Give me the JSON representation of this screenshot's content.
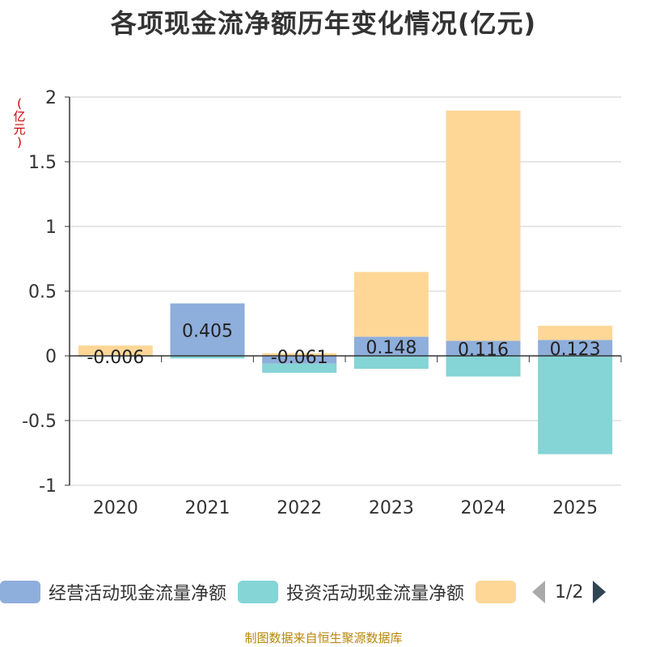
{
  "chart_data": {
    "type": "bar",
    "stacked": true,
    "title": "各项现金流净额历年变化情况(亿元)",
    "ylabel": "(亿元)",
    "categories": [
      "2020",
      "2021",
      "2022",
      "2023",
      "2024",
      "2025"
    ],
    "ylim": [
      -1,
      2
    ],
    "yticks": [
      -1,
      -0.5,
      0,
      0.5,
      1,
      1.5,
      2
    ],
    "ytick_labels": [
      "-1",
      "-0.5",
      "0",
      "0.5",
      "1",
      "1.5",
      "2"
    ],
    "grid": true,
    "series": [
      {
        "name": "经营活动现金流量净额",
        "color": "#8eaedb",
        "values": [
          -0.006,
          0.405,
          -0.061,
          0.148,
          0.116,
          0.123
        ],
        "labels": [
          "-0.006",
          "0.405",
          "-0.061",
          "0.148",
          "0.116",
          "0.123"
        ]
      },
      {
        "name": "投资活动现金流量净额",
        "color": "#85d4d6",
        "values": [
          0.0,
          -0.02,
          -0.07,
          -0.1,
          -0.16,
          -0.76
        ]
      },
      {
        "name": "",
        "color": "#fed797",
        "values": [
          0.08,
          0.0,
          0.02,
          0.5,
          1.78,
          0.11
        ]
      }
    ]
  },
  "legend": {
    "items": [
      {
        "label": "经营活动现金流量净额",
        "color": "#8eaedb"
      },
      {
        "label": "投资活动现金流量净额",
        "color": "#85d4d6"
      },
      {
        "label": "",
        "color": "#fed797"
      }
    ],
    "page": "1/2"
  },
  "unit_chars": [
    "(",
    "亿",
    "元",
    ")"
  ],
  "source": "制图数据来自恒生聚源数据库"
}
